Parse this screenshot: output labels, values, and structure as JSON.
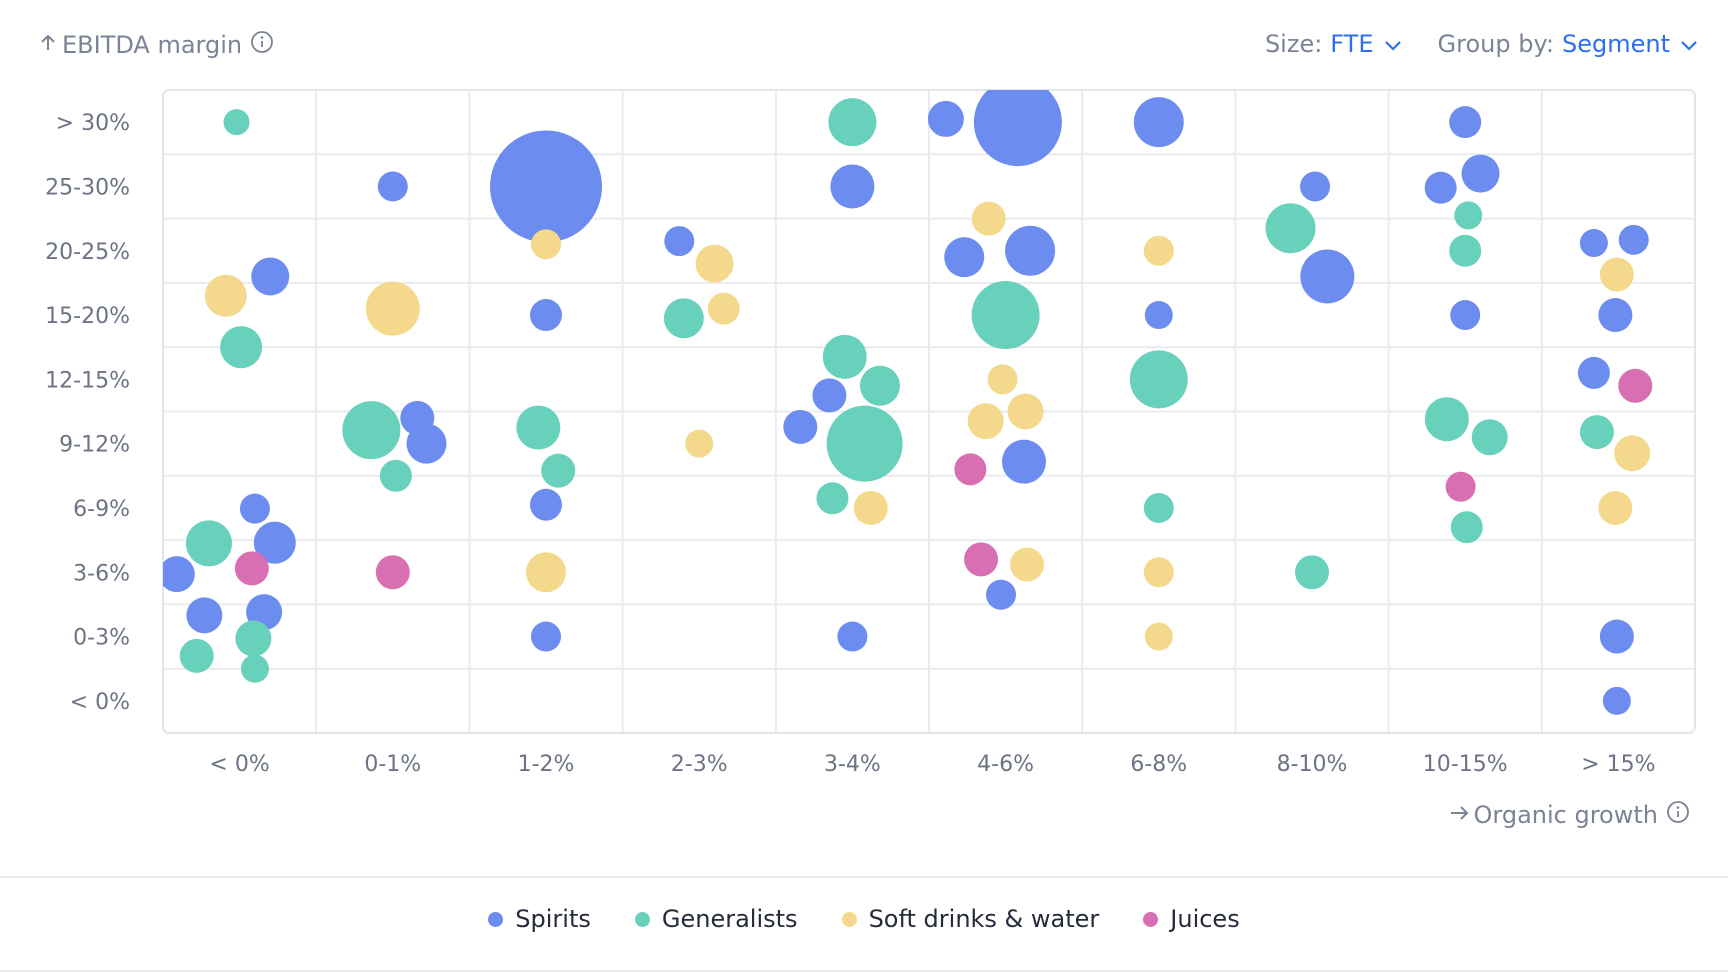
{
  "header": {
    "y_axis_title": "EBITDA margin",
    "size_label": "Size:",
    "size_value": "FTE",
    "group_label": "Group by:",
    "group_value": "Segment"
  },
  "x_axis_title": "Organic growth",
  "legend": [
    {
      "name": "Spirits",
      "color": "#6d8cf0"
    },
    {
      "name": "Generalists",
      "color": "#68d1bb"
    },
    {
      "name": "Soft drinks & water",
      "color": "#f4d98c"
    },
    {
      "name": "Juices",
      "color": "#d96fb3"
    }
  ],
  "chart_data": {
    "type": "scatter",
    "title": "",
    "xlabel": "Organic growth",
    "ylabel": "EBITDA margin",
    "x_categories": [
      "< 0%",
      "0-1%",
      "1-2%",
      "2-3%",
      "3-4%",
      "4-6%",
      "6-8%",
      "8-10%",
      "10-15%",
      "> 15%"
    ],
    "y_categories": [
      "< 0%",
      "0-3%",
      "3-6%",
      "6-9%",
      "9-12%",
      "12-15%",
      "15-20%",
      "20-25%",
      "25-30%",
      "> 30%"
    ],
    "size_metric": "FTE",
    "group_by": "Segment",
    "points": [
      {
        "x": -0.02,
        "y": 9.0,
        "size": 13,
        "series": "Generalists"
      },
      {
        "x": 0.2,
        "y": 6.6,
        "size": 19,
        "series": "Spirits"
      },
      {
        "x": -0.09,
        "y": 6.3,
        "size": 21,
        "series": "Soft drinks & water"
      },
      {
        "x": 0.01,
        "y": 5.5,
        "size": 21,
        "series": "Generalists"
      },
      {
        "x": 0.1,
        "y": 2.99,
        "size": 15,
        "series": "Spirits"
      },
      {
        "x": -0.2,
        "y": 2.45,
        "size": 23,
        "series": "Generalists"
      },
      {
        "x": 0.23,
        "y": 2.46,
        "size": 21,
        "series": "Spirits"
      },
      {
        "x": -0.41,
        "y": 1.97,
        "size": 18,
        "series": "Spirits"
      },
      {
        "x": 0.08,
        "y": 2.06,
        "size": 17,
        "series": "Juices"
      },
      {
        "x": -0.23,
        "y": 1.33,
        "size": 18,
        "series": "Spirits"
      },
      {
        "x": 0.16,
        "y": 1.38,
        "size": 18,
        "series": "Spirits"
      },
      {
        "x": 0.09,
        "y": 0.97,
        "size": 18,
        "series": "Generalists"
      },
      {
        "x": -0.28,
        "y": 0.7,
        "size": 17,
        "series": "Generalists"
      },
      {
        "x": 0.1,
        "y": 0.5,
        "size": 14,
        "series": "Generalists"
      },
      {
        "x": 1.0,
        "y": 8.0,
        "size": 15,
        "series": "Spirits"
      },
      {
        "x": 1.0,
        "y": 6.1,
        "size": 27,
        "series": "Soft drinks & water"
      },
      {
        "x": 1.16,
        "y": 4.4,
        "size": 17,
        "series": "Spirits"
      },
      {
        "x": 0.86,
        "y": 4.21,
        "size": 29,
        "series": "Generalists"
      },
      {
        "x": 1.22,
        "y": 4.0,
        "size": 20,
        "series": "Spirits"
      },
      {
        "x": 1.02,
        "y": 3.5,
        "size": 16,
        "series": "Generalists"
      },
      {
        "x": 1.0,
        "y": 2.0,
        "size": 17,
        "series": "Juices"
      },
      {
        "x": 2.0,
        "y": 8.0,
        "size": 56,
        "series": "Spirits"
      },
      {
        "x": 2.0,
        "y": 7.1,
        "size": 15,
        "series": "Soft drinks & water"
      },
      {
        "x": 2.0,
        "y": 6.0,
        "size": 16,
        "series": "Spirits"
      },
      {
        "x": 1.95,
        "y": 4.25,
        "size": 22,
        "series": "Generalists"
      },
      {
        "x": 2.08,
        "y": 3.58,
        "size": 17,
        "series": "Generalists"
      },
      {
        "x": 2.0,
        "y": 3.05,
        "size": 16,
        "series": "Spirits"
      },
      {
        "x": 2.0,
        "y": 2.0,
        "size": 20,
        "series": "Soft drinks & water"
      },
      {
        "x": 2.0,
        "y": 1.0,
        "size": 15,
        "series": "Spirits"
      },
      {
        "x": 2.87,
        "y": 7.15,
        "size": 15,
        "series": "Spirits"
      },
      {
        "x": 3.1,
        "y": 6.8,
        "size": 19,
        "series": "Soft drinks & water"
      },
      {
        "x": 2.9,
        "y": 5.95,
        "size": 20,
        "series": "Generalists"
      },
      {
        "x": 3.16,
        "y": 6.1,
        "size": 16,
        "series": "Soft drinks & water"
      },
      {
        "x": 3.0,
        "y": 4.0,
        "size": 14,
        "series": "Soft drinks & water"
      },
      {
        "x": 4.0,
        "y": 9.0,
        "size": 24,
        "series": "Generalists"
      },
      {
        "x": 4.0,
        "y": 8.0,
        "size": 22,
        "series": "Spirits"
      },
      {
        "x": 3.95,
        "y": 5.35,
        "size": 22,
        "series": "Generalists"
      },
      {
        "x": 4.18,
        "y": 4.9,
        "size": 20,
        "series": "Generalists"
      },
      {
        "x": 3.85,
        "y": 4.75,
        "size": 17,
        "series": "Spirits"
      },
      {
        "x": 3.66,
        "y": 4.26,
        "size": 17,
        "series": "Spirits"
      },
      {
        "x": 4.08,
        "y": 4.0,
        "size": 38,
        "series": "Generalists"
      },
      {
        "x": 3.87,
        "y": 3.15,
        "size": 16,
        "series": "Generalists"
      },
      {
        "x": 4.12,
        "y": 3.0,
        "size": 17,
        "series": "Soft drinks & water"
      },
      {
        "x": 4.0,
        "y": 1.0,
        "size": 15,
        "series": "Spirits"
      },
      {
        "x": 4.61,
        "y": 9.05,
        "size": 18,
        "series": "Spirits"
      },
      {
        "x": 5.08,
        "y": 9.0,
        "size": 44,
        "series": "Spirits"
      },
      {
        "x": 4.89,
        "y": 7.5,
        "size": 17,
        "series": "Soft drinks & water"
      },
      {
        "x": 4.73,
        "y": 6.9,
        "size": 20,
        "series": "Spirits"
      },
      {
        "x": 5.16,
        "y": 7.0,
        "size": 25,
        "series": "Spirits"
      },
      {
        "x": 5.0,
        "y": 6.0,
        "size": 34,
        "series": "Generalists"
      },
      {
        "x": 4.98,
        "y": 5.0,
        "size": 15,
        "series": "Soft drinks & water"
      },
      {
        "x": 5.13,
        "y": 4.5,
        "size": 18,
        "series": "Soft drinks & water"
      },
      {
        "x": 4.87,
        "y": 4.35,
        "size": 18,
        "series": "Soft drinks & water"
      },
      {
        "x": 5.12,
        "y": 3.72,
        "size": 22,
        "series": "Spirits"
      },
      {
        "x": 4.77,
        "y": 3.6,
        "size": 16,
        "series": "Juices"
      },
      {
        "x": 4.84,
        "y": 2.2,
        "size": 17,
        "series": "Juices"
      },
      {
        "x": 5.14,
        "y": 2.12,
        "size": 17,
        "series": "Soft drinks & water"
      },
      {
        "x": 4.97,
        "y": 1.65,
        "size": 15,
        "series": "Spirits"
      },
      {
        "x": 6.0,
        "y": 9.0,
        "size": 25,
        "series": "Spirits"
      },
      {
        "x": 6.0,
        "y": 7.0,
        "size": 15,
        "series": "Soft drinks & water"
      },
      {
        "x": 6.0,
        "y": 6.0,
        "size": 14,
        "series": "Spirits"
      },
      {
        "x": 6.0,
        "y": 5.0,
        "size": 29,
        "series": "Generalists"
      },
      {
        "x": 6.0,
        "y": 3.0,
        "size": 15,
        "series": "Generalists"
      },
      {
        "x": 6.0,
        "y": 2.0,
        "size": 15,
        "series": "Soft drinks & water"
      },
      {
        "x": 6.0,
        "y": 1.0,
        "size": 14,
        "series": "Soft drinks & water"
      },
      {
        "x": 7.02,
        "y": 8.0,
        "size": 15,
        "series": "Spirits"
      },
      {
        "x": 6.86,
        "y": 7.35,
        "size": 25,
        "series": "Generalists"
      },
      {
        "x": 7.1,
        "y": 6.6,
        "size": 27,
        "series": "Spirits"
      },
      {
        "x": 7.0,
        "y": 2.0,
        "size": 17,
        "series": "Generalists"
      },
      {
        "x": 8.0,
        "y": 9.0,
        "size": 16,
        "series": "Spirits"
      },
      {
        "x": 8.1,
        "y": 8.2,
        "size": 19,
        "series": "Spirits"
      },
      {
        "x": 7.84,
        "y": 7.98,
        "size": 16,
        "series": "Spirits"
      },
      {
        "x": 8.02,
        "y": 7.55,
        "size": 14,
        "series": "Generalists"
      },
      {
        "x": 8.0,
        "y": 7.0,
        "size": 16,
        "series": "Generalists"
      },
      {
        "x": 8.0,
        "y": 6.0,
        "size": 15,
        "series": "Spirits"
      },
      {
        "x": 7.88,
        "y": 4.38,
        "size": 22,
        "series": "Generalists"
      },
      {
        "x": 8.16,
        "y": 4.1,
        "size": 18,
        "series": "Generalists"
      },
      {
        "x": 7.97,
        "y": 3.33,
        "size": 15,
        "series": "Juices"
      },
      {
        "x": 8.01,
        "y": 2.7,
        "size": 16,
        "series": "Generalists"
      },
      {
        "x": 8.84,
        "y": 7.12,
        "size": 14,
        "series": "Spirits"
      },
      {
        "x": 9.1,
        "y": 7.17,
        "size": 15,
        "series": "Spirits"
      },
      {
        "x": 8.99,
        "y": 6.63,
        "size": 17,
        "series": "Soft drinks & water"
      },
      {
        "x": 8.98,
        "y": 6.0,
        "size": 17,
        "series": "Spirits"
      },
      {
        "x": 8.84,
        "y": 5.1,
        "size": 16,
        "series": "Spirits"
      },
      {
        "x": 9.11,
        "y": 4.9,
        "size": 17,
        "series": "Juices"
      },
      {
        "x": 8.86,
        "y": 4.18,
        "size": 17,
        "series": "Generalists"
      },
      {
        "x": 9.09,
        "y": 3.85,
        "size": 18,
        "series": "Soft drinks & water"
      },
      {
        "x": 8.98,
        "y": 3.0,
        "size": 17,
        "series": "Soft drinks & water"
      },
      {
        "x": 8.99,
        "y": 1.0,
        "size": 17,
        "series": "Spirits"
      },
      {
        "x": 8.99,
        "y": 0.0,
        "size": 14,
        "series": "Spirits"
      }
    ]
  }
}
